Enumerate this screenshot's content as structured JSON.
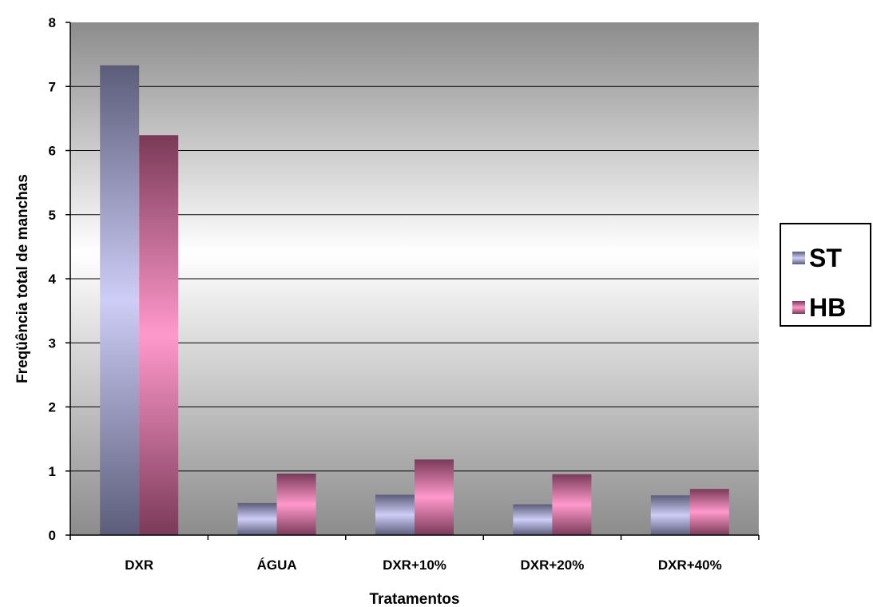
{
  "chart_data": {
    "type": "bar",
    "categories": [
      "DXR",
      "ÁGUA",
      "DXR+10%",
      "DXR+20%",
      "DXR+40%"
    ],
    "series": [
      {
        "name": "ST",
        "values": [
          7.33,
          0.5,
          0.63,
          0.48,
          0.62
        ]
      },
      {
        "name": "HB",
        "values": [
          6.24,
          0.96,
          1.18,
          0.95,
          0.72
        ]
      }
    ],
    "title": "",
    "xlabel": "Tratamentos",
    "ylabel": "Freqüência total de manchas",
    "ylim": [
      0,
      8
    ],
    "yticks": [
      "0",
      "1",
      "2",
      "3",
      "4",
      "5",
      "6",
      "7",
      "8"
    ],
    "grid": true,
    "legend_position": "right",
    "colors": {
      "ST_light": "#cdcdf7",
      "ST_dark": "#5c5c7a",
      "HB_light": "#ff99cc",
      "HB_dark": "#7a3a58",
      "plot_dark": "#8c8c8c",
      "plot_light": "#ffffff"
    }
  }
}
